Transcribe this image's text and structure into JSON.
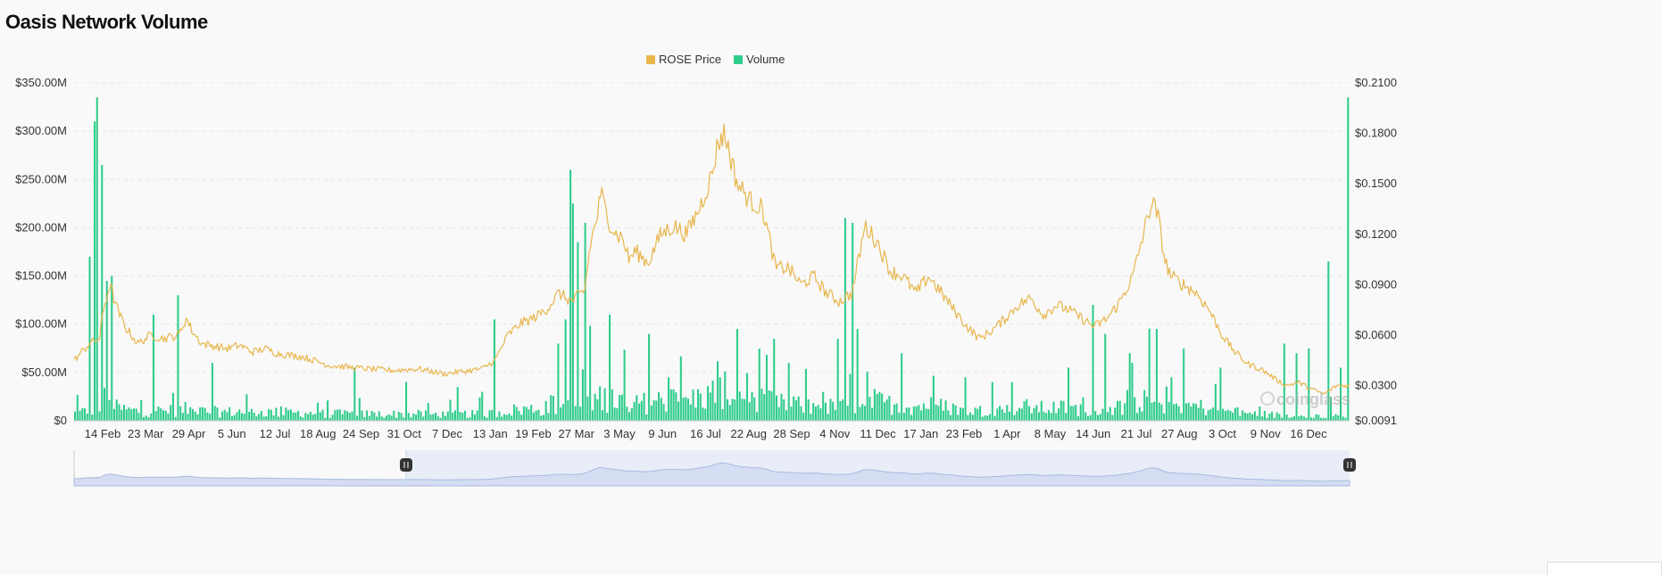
{
  "chart_data": {
    "type": "bar+line",
    "title": "Oasis Network Volume",
    "legend": [
      {
        "name": "ROSE Price",
        "color": "#e8b64c"
      },
      {
        "name": "Volume",
        "color": "#2ecc8b"
      }
    ],
    "legend_position": "top-center",
    "watermark": "coinglass",
    "left_axis": {
      "ticks": [
        "$0",
        "$50.00M",
        "$100.00M",
        "$150.00M",
        "$200.00M",
        "$250.00M",
        "$300.00M",
        "$350.00M"
      ],
      "range": [
        0,
        350
      ]
    },
    "right_axis": {
      "ticks": [
        "$0.0091",
        "$0.0300",
        "$0.0600",
        "$0.0900",
        "$0.1200",
        "$0.1500",
        "$0.1800",
        "$0.2100"
      ],
      "tick_values": [
        0.0091,
        0.03,
        0.06,
        0.09,
        0.12,
        0.15,
        0.18,
        0.21
      ]
    },
    "x_labels": [
      "14 Feb",
      "23 Mar",
      "29 Apr",
      "5 Jun",
      "12 Jul",
      "18 Aug",
      "24 Sep",
      "31 Oct",
      "7 Dec",
      "13 Jan",
      "19 Feb",
      "27 Mar",
      "3 May",
      "9 Jun",
      "16 Jul",
      "22 Aug",
      "28 Sep",
      "4 Nov",
      "11 Dec",
      "17 Jan",
      "23 Feb",
      "1 Apr",
      "8 May",
      "14 Jun",
      "21 Jul",
      "27 Aug",
      "3 Oct",
      "9 Nov",
      "16 Dec"
    ],
    "price_keypoints": [
      [
        0,
        0.045
      ],
      [
        0.012,
        0.055
      ],
      [
        0.02,
        0.058
      ],
      [
        0.023,
        0.075
      ],
      [
        0.028,
        0.09
      ],
      [
        0.034,
        0.075
      ],
      [
        0.04,
        0.065
      ],
      [
        0.05,
        0.055
      ],
      [
        0.06,
        0.06
      ],
      [
        0.07,
        0.058
      ],
      [
        0.082,
        0.06
      ],
      [
        0.088,
        0.07
      ],
      [
        0.093,
        0.062
      ],
      [
        0.1,
        0.055
      ],
      [
        0.12,
        0.052
      ],
      [
        0.13,
        0.054
      ],
      [
        0.14,
        0.05
      ],
      [
        0.15,
        0.052
      ],
      [
        0.16,
        0.049
      ],
      [
        0.18,
        0.047
      ],
      [
        0.2,
        0.042
      ],
      [
        0.23,
        0.04
      ],
      [
        0.25,
        0.039
      ],
      [
        0.27,
        0.04
      ],
      [
        0.29,
        0.037
      ],
      [
        0.3,
        0.038
      ],
      [
        0.32,
        0.04
      ],
      [
        0.33,
        0.045
      ],
      [
        0.34,
        0.06
      ],
      [
        0.35,
        0.067
      ],
      [
        0.36,
        0.07
      ],
      [
        0.37,
        0.075
      ],
      [
        0.38,
        0.085
      ],
      [
        0.39,
        0.08
      ],
      [
        0.398,
        0.085
      ],
      [
        0.4,
        0.085
      ],
      [
        0.405,
        0.115
      ],
      [
        0.41,
        0.13
      ],
      [
        0.413,
        0.145
      ],
      [
        0.418,
        0.13
      ],
      [
        0.425,
        0.12
      ],
      [
        0.43,
        0.118
      ],
      [
        0.435,
        0.105
      ],
      [
        0.44,
        0.11
      ],
      [
        0.45,
        0.103
      ],
      [
        0.46,
        0.12
      ],
      [
        0.47,
        0.125
      ],
      [
        0.48,
        0.12
      ],
      [
        0.49,
        0.135
      ],
      [
        0.5,
        0.155
      ],
      [
        0.505,
        0.175
      ],
      [
        0.51,
        0.18
      ],
      [
        0.515,
        0.165
      ],
      [
        0.52,
        0.15
      ],
      [
        0.53,
        0.14
      ],
      [
        0.54,
        0.135
      ],
      [
        0.55,
        0.1
      ],
      [
        0.56,
        0.1
      ],
      [
        0.57,
        0.09
      ],
      [
        0.58,
        0.095
      ],
      [
        0.59,
        0.085
      ],
      [
        0.6,
        0.08
      ],
      [
        0.61,
        0.085
      ],
      [
        0.62,
        0.125
      ],
      [
        0.63,
        0.115
      ],
      [
        0.64,
        0.098
      ],
      [
        0.65,
        0.095
      ],
      [
        0.66,
        0.085
      ],
      [
        0.67,
        0.095
      ],
      [
        0.68,
        0.085
      ],
      [
        0.69,
        0.075
      ],
      [
        0.7,
        0.065
      ],
      [
        0.71,
        0.058
      ],
      [
        0.72,
        0.063
      ],
      [
        0.73,
        0.07
      ],
      [
        0.74,
        0.078
      ],
      [
        0.75,
        0.082
      ],
      [
        0.76,
        0.072
      ],
      [
        0.77,
        0.078
      ],
      [
        0.78,
        0.075
      ],
      [
        0.79,
        0.07
      ],
      [
        0.8,
        0.065
      ],
      [
        0.81,
        0.07
      ],
      [
        0.82,
        0.08
      ],
      [
        0.83,
        0.095
      ],
      [
        0.84,
        0.125
      ],
      [
        0.845,
        0.14
      ],
      [
        0.85,
        0.13
      ],
      [
        0.855,
        0.105
      ],
      [
        0.86,
        0.095
      ],
      [
        0.87,
        0.09
      ],
      [
        0.88,
        0.085
      ],
      [
        0.89,
        0.075
      ],
      [
        0.9,
        0.06
      ],
      [
        0.91,
        0.05
      ],
      [
        0.92,
        0.043
      ],
      [
        0.93,
        0.04
      ],
      [
        0.94,
        0.035
      ],
      [
        0.95,
        0.03
      ],
      [
        0.96,
        0.032
      ],
      [
        0.97,
        0.028
      ],
      [
        0.98,
        0.025
      ],
      [
        0.99,
        0.03
      ],
      [
        1.0,
        0.03
      ]
    ],
    "volume_spikes": [
      [
        0.018,
        335
      ],
      [
        0.015,
        310
      ],
      [
        0.022,
        265
      ],
      [
        0.012,
        170
      ],
      [
        0.025,
        145
      ],
      [
        0.028,
        150
      ],
      [
        0.08,
        130
      ],
      [
        0.062,
        110
      ],
      [
        0.108,
        60
      ],
      [
        0.22,
        55
      ],
      [
        0.26,
        40
      ],
      [
        0.3,
        35
      ],
      [
        0.32,
        30
      ],
      [
        0.33,
        105
      ],
      [
        0.38,
        80
      ],
      [
        0.385,
        105
      ],
      [
        0.39,
        260
      ],
      [
        0.392,
        225
      ],
      [
        0.395,
        185
      ],
      [
        0.4,
        205
      ],
      [
        0.42,
        110
      ],
      [
        0.45,
        90
      ],
      [
        0.5,
        115
      ],
      [
        0.52,
        95
      ],
      [
        0.55,
        85
      ],
      [
        0.6,
        85
      ],
      [
        0.605,
        210
      ],
      [
        0.61,
        205
      ],
      [
        0.615,
        95
      ],
      [
        0.65,
        70
      ],
      [
        0.7,
        45
      ],
      [
        0.72,
        40
      ],
      [
        0.78,
        55
      ],
      [
        0.8,
        120
      ],
      [
        0.81,
        90
      ],
      [
        0.83,
        60
      ],
      [
        0.85,
        95
      ],
      [
        0.87,
        75
      ],
      [
        0.9,
        55
      ],
      [
        0.95,
        80
      ],
      [
        0.96,
        70
      ],
      [
        0.97,
        75
      ],
      [
        0.985,
        165
      ],
      [
        0.995,
        55
      ],
      [
        1.0,
        335
      ]
    ]
  }
}
